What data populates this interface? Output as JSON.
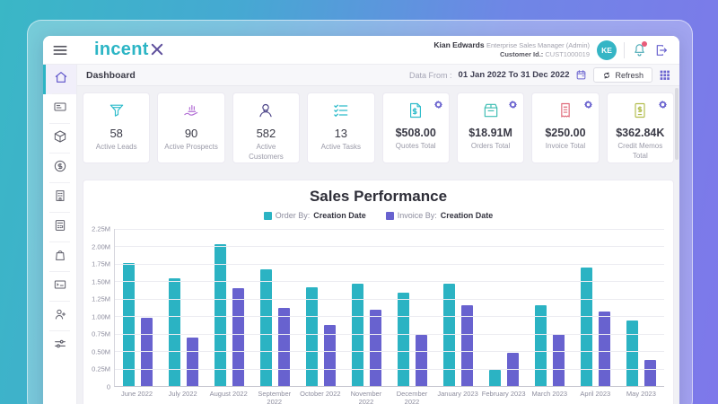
{
  "header": {
    "logo_text": "incent",
    "user": {
      "name": "Kian Edwards",
      "role": "Enterprise Sales Manager (Admin)",
      "customer_id_label": "Customer Id.:",
      "customer_id": "CUST1000019",
      "avatar_initials": "KE"
    }
  },
  "toolbar": {
    "title": "Dashboard",
    "date_label": "Data From :",
    "date_range": "01 Jan 2022 To 31 Dec 2022",
    "refresh_label": "Refresh"
  },
  "sidebar": {
    "items": [
      {
        "name": "home",
        "icon": "home-icon",
        "active": true
      },
      {
        "name": "crm",
        "icon": "crm-icon",
        "active": false
      },
      {
        "name": "inventory",
        "icon": "cube-icon",
        "active": false
      },
      {
        "name": "commissions",
        "icon": "dollar-coin-icon",
        "active": false
      },
      {
        "name": "organization",
        "icon": "building-icon",
        "active": false
      },
      {
        "name": "calculator",
        "icon": "calculator-icon",
        "active": false
      },
      {
        "name": "purchases",
        "icon": "shopping-bag-icon",
        "active": false
      },
      {
        "name": "agreements",
        "icon": "card-list-icon",
        "active": false
      },
      {
        "name": "add-user",
        "icon": "person-add-icon",
        "active": false
      },
      {
        "name": "adjustments",
        "icon": "sliders-icon",
        "active": false
      }
    ]
  },
  "kpis": [
    {
      "value": "58",
      "label": "Active Leads",
      "icon": "funnel-icon",
      "icon_color": "#2fbccb",
      "gear": false
    },
    {
      "value": "90",
      "label": "Active Prospects",
      "icon": "hand-chart-icon",
      "icon_color": "#b06ad4",
      "gear": false
    },
    {
      "value": "582",
      "label": "Active Customers",
      "icon": "person-icon",
      "icon_color": "#4b4387",
      "gear": false
    },
    {
      "value": "13",
      "label": "Active Tasks",
      "icon": "checklist-icon",
      "icon_color": "#2fbccb",
      "gear": false
    },
    {
      "value": "$508.00",
      "label": "Quotes Total",
      "icon": "quote-doc-icon",
      "icon_color": "#2fbccb",
      "gear": true
    },
    {
      "value": "$18.91M",
      "label": "Orders Total",
      "icon": "order-box-icon",
      "icon_color": "#3cbdb2",
      "gear": true
    },
    {
      "value": "$250.00",
      "label": "Invoice Total",
      "icon": "invoice-icon",
      "icon_color": "#e06a7a",
      "gear": true
    },
    {
      "value": "$362.84K",
      "label": "Credit Memos Total",
      "icon": "credit-memo-icon",
      "icon_color": "#b2bd4e",
      "gear": true
    }
  ],
  "chart_data": {
    "type": "bar",
    "title": "Sales Performance",
    "legend": [
      {
        "prefix": "Order By:",
        "value": "Creation Date",
        "color": "#2bb3c3"
      },
      {
        "prefix": "Invoice By:",
        "value": "Creation Date",
        "color": "#6862cf"
      }
    ],
    "categories": [
      "June 2022",
      "July 2022",
      "August 2022",
      "September 2022",
      "October 2022",
      "November 2022",
      "December 2022",
      "January 2023",
      "February 2023",
      "March 2023",
      "April 2023",
      "May 2023"
    ],
    "series": [
      {
        "name": "Order",
        "color": "#2bb3c3",
        "values": [
          1.76,
          1.54,
          2.03,
          1.67,
          1.42,
          1.46,
          1.34,
          1.47,
          0.23,
          1.16,
          1.7,
          0.94
        ]
      },
      {
        "name": "Invoice",
        "color": "#6862cf",
        "values": [
          0.98,
          0.7,
          1.4,
          1.12,
          0.88,
          1.09,
          0.73,
          1.16,
          0.48,
          0.74,
          1.07,
          0.37
        ]
      }
    ],
    "ylabel": "",
    "xlabel": "",
    "ylim": [
      0,
      2.25
    ],
    "ytick_step": 0.25,
    "yticks": [
      "2.25M",
      "2.00M",
      "1.75M",
      "1.50M",
      "1.25M",
      "1.00M",
      "0.75M",
      "0.50M",
      "0.25M",
      "0"
    ],
    "grid": true,
    "legend_position": "top"
  },
  "colors": {
    "accent_teal": "#2bb3c3",
    "accent_purple": "#6862cf",
    "logo_purple": "#5e4f9c"
  }
}
